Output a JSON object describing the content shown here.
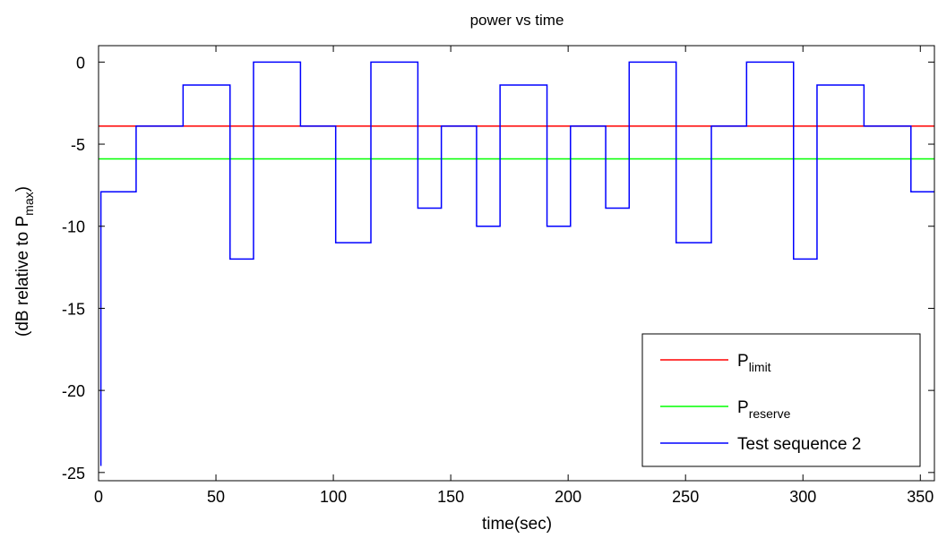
{
  "chart_data": {
    "type": "line",
    "title": "power vs time",
    "xlabel": "time(sec)",
    "ylabel": {
      "main": "(dB relative to P",
      "sub": "max",
      "end": ")"
    },
    "xlim": [
      0,
      356
    ],
    "ylim": [
      -25.5,
      1
    ],
    "xticks": [
      0,
      50,
      100,
      150,
      200,
      250,
      300,
      350
    ],
    "yticks": [
      0,
      -5,
      -10,
      -15,
      -20,
      -25
    ],
    "grid": false,
    "legend_position": "bottom-right",
    "series": [
      {
        "name": "P",
        "name_sub": "limit",
        "color": "#ff0000",
        "step": false,
        "x": [
          0,
          356
        ],
        "y": [
          -3.9,
          -3.9
        ]
      },
      {
        "name": "P",
        "name_sub": "reserve",
        "color": "#00ff00",
        "step": false,
        "x": [
          0,
          356
        ],
        "y": [
          -5.9,
          -5.9
        ]
      },
      {
        "name": "Test sequence 2",
        "name_sub": "",
        "color": "#0000ff",
        "step": true,
        "initial_drop": {
          "x": 1,
          "y": -24.6
        },
        "x": [
          1,
          16,
          36,
          56,
          66,
          86,
          101,
          116,
          136,
          146,
          161,
          171,
          191,
          201,
          216,
          226,
          246,
          261,
          276,
          296,
          306,
          326,
          346,
          356
        ],
        "y": [
          -7.9,
          -3.9,
          -1.4,
          -12.0,
          0,
          -3.9,
          -11.0,
          0,
          -8.9,
          -3.9,
          -10.0,
          -1.4,
          -10.0,
          -3.9,
          -8.9,
          0,
          -11.0,
          -3.9,
          0,
          -12.0,
          -1.4,
          -3.9,
          -7.9,
          -7.9
        ]
      }
    ]
  }
}
